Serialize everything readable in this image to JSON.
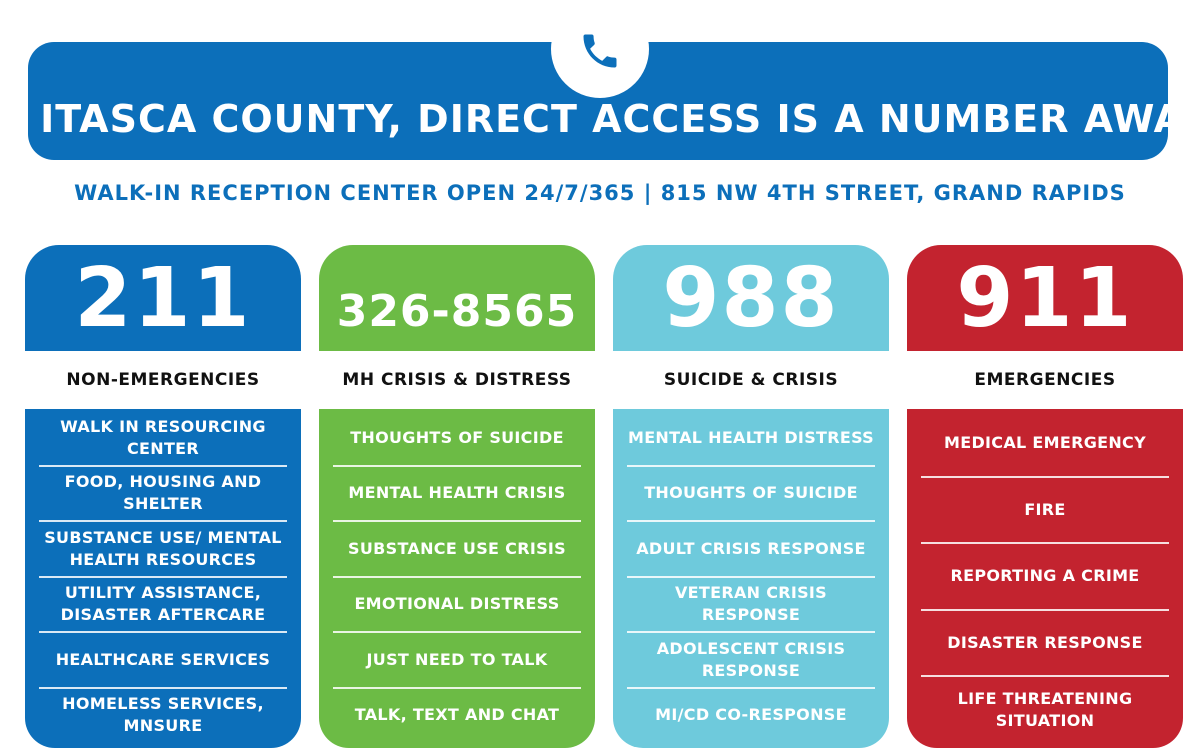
{
  "banner": {
    "title": "IN ITASCA COUNTY, DIRECT ACCESS IS A NUMBER AWAY.",
    "icon": "phone-icon",
    "accent": "#0c6fba"
  },
  "subtitle": "WALK-IN RECEPTION CENTER OPEN 24/7/365 | 815 NW 4TH STREET, GRAND RAPIDS",
  "cards": [
    {
      "number": "211",
      "label": "NON-EMERGENCIES",
      "color": "#0c6fba",
      "items": [
        "WALK IN RESOURCING CENTER",
        "FOOD, HOUSING AND SHELTER",
        "SUBSTANCE USE/ MENTAL HEALTH RESOURCES",
        "UTILITY ASSISTANCE, DISASTER AFTERCARE",
        "HEALTHCARE SERVICES",
        "HOMELESS SERVICES, MNSURE"
      ]
    },
    {
      "number": "326-8565",
      "label": "MH CRISIS & DISTRESS",
      "color": "#6cbb45",
      "items": [
        "THOUGHTS OF SUICIDE",
        "MENTAL HEALTH CRISIS",
        "SUBSTANCE USE CRISIS",
        "EMOTIONAL DISTRESS",
        "JUST NEED TO TALK",
        "TALK, TEXT AND CHAT"
      ]
    },
    {
      "number": "988",
      "label": "SUICIDE & CRISIS",
      "color": "#6ecadc",
      "items": [
        "MENTAL HEALTH DISTRESS",
        "THOUGHTS OF SUICIDE",
        "ADULT CRISIS RESPONSE",
        "VETERAN CRISIS RESPONSE",
        "ADOLESCENT CRISIS RESPONSE",
        "MI/CD CO-RESPONSE"
      ]
    },
    {
      "number": "911",
      "label": "EMERGENCIES",
      "color": "#c3232f",
      "items": [
        "MEDICAL EMERGENCY",
        "FIRE",
        "REPORTING A CRIME",
        "DISASTER RESPONSE",
        "LIFE THREATENING SITUATION"
      ]
    }
  ]
}
